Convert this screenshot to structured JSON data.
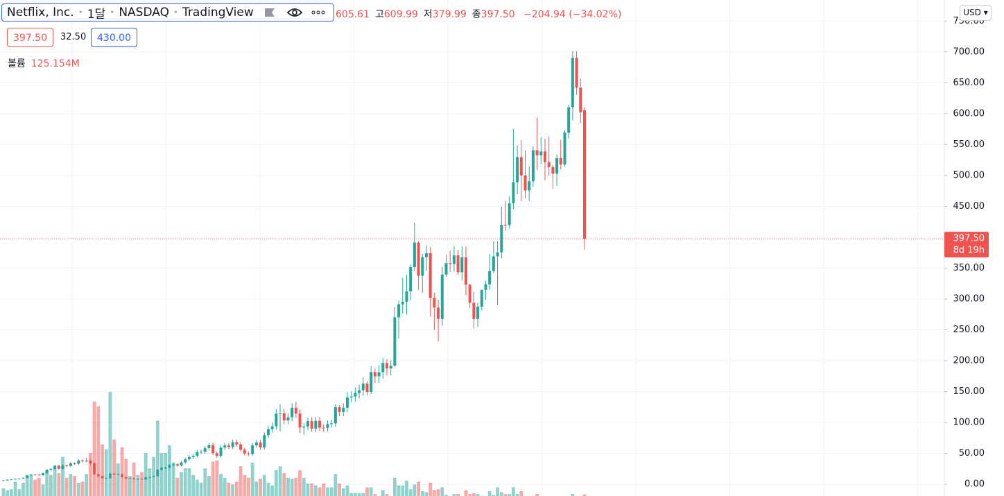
{
  "header": {
    "symbol": "Netflix, Inc.",
    "interval": "1달",
    "exchange": "NASDAQ",
    "source": "TradingView",
    "open": "605.61",
    "high_label": "고",
    "high": "609.99",
    "low_label": "저",
    "low": "379.99",
    "close_label": "종",
    "close": "397.50",
    "change": "−204.94 (−34.02%)",
    "sell": "397.50",
    "spread": "32.50",
    "buy": "430.00",
    "volume_label": "볼륨",
    "volume_value": "125.154M",
    "currency": "USD"
  },
  "chart_data": {
    "type": "candlestick",
    "open": [
      5.9,
      6.3,
      7.4,
      7.9,
      8.9,
      9.3,
      10.5,
      14.1,
      15.7,
      15.5,
      14.6,
      17.9,
      23.2,
      24.8,
      29.9,
      25.1,
      30.4,
      29.6,
      33.9,
      33.3,
      38.6,
      37.5,
      38.3,
      33.8,
      16.2,
      13.2,
      9.8,
      9.9,
      17.3,
      15.7,
      16.4,
      11.5,
      9.2,
      9.8,
      8.1,
      8.7,
      7.8,
      11.3,
      11.7,
      13.2,
      23.6,
      26.6,
      27.0,
      30.9,
      32.3,
      30.2,
      35.4,
      40.7,
      44.2,
      46.2,
      52.1,
      52.6,
      58.5,
      63.4,
      50.3,
      46.0,
      59.4,
      62.9,
      60.3,
      68.2,
      64.4,
      55.9,
      49.8,
      48.8,
      63.1,
      67.8,
      59.5,
      79.5,
      89.2,
      93.8,
      114.3,
      115.0,
      103.3,
      108.4,
      123.8,
      114.4,
      91.8,
      93.4,
      102.2,
      90.0,
      102.6,
      91.5,
      91.3,
      97.5,
      98.6,
      124.9,
      117.0,
      123.8,
      140.7,
      142.1,
      147.8,
      152.2,
      163.1,
      149.4,
      181.7,
      174.7,
      181.4,
      196.4,
      187.6,
      192.0,
      270.3,
      291.4,
      295.4,
      312.5,
      351.6,
      391.4,
      337.5,
      367.7,
      374.1,
      301.8,
      286.1,
      267.7,
      339.5,
      358.1,
      356.6,
      370.5,
      343.3,
      367.3,
      323.0,
      293.8,
      267.6,
      287.4,
      314.7,
      323.6,
      345.1,
      369.0,
      375.5,
      419.9,
      419.7,
      455.0,
      488.9,
      529.6,
      500.0,
      475.7,
      490.7,
      540.7,
      532.4,
      538.9,
      521.7,
      513.5,
      502.8,
      528.2,
      517.6,
      569.2,
      610.3,
      690.3,
      641.9,
      605.61
    ],
    "high": [
      6.7,
      7.8,
      8.4,
      9.4,
      9.9,
      11.1,
      14.9,
      16.6,
      16.6,
      16.4,
      19.0,
      24.6,
      26.3,
      31.7,
      31.7,
      32.2,
      32.2,
      35.9,
      35.9,
      40.9,
      40.9,
      43.0,
      40.6,
      35.8,
      17.2,
      14.0,
      10.5,
      18.3,
      18.3,
      17.4,
      17.4,
      12.2,
      10.4,
      10.4,
      9.2,
      9.2,
      12.0,
      12.4,
      14.0,
      25.0,
      28.2,
      28.6,
      32.8,
      34.2,
      34.2,
      37.5,
      43.1,
      46.9,
      49.0,
      55.2,
      55.8,
      62.0,
      67.2,
      67.2,
      53.3,
      63.0,
      66.7,
      66.7,
      72.3,
      72.3,
      68.3,
      59.3,
      52.8,
      66.9,
      71.9,
      71.9,
      84.3,
      94.6,
      99.4,
      121.2,
      129.3,
      121.9,
      114.9,
      131.2,
      133.3,
      121.3,
      99.0,
      108.3,
      108.3,
      108.8,
      108.8,
      97.0,
      103.4,
      104.5,
      129.3,
      128.3,
      131.2,
      149.1,
      150.6,
      156.7,
      161.3,
      172.9,
      166.9,
      191.5,
      187.7,
      192.3,
      204.4,
      202.5,
      200.9,
      286.8,
      297.4,
      333.9,
      338.8,
      356.1,
      423.2,
      393.7,
      373.0,
      386.8,
      384.0,
      310.0,
      298.7,
      352.0,
      371.5,
      378.0,
      385.9,
      379.4,
      385.0,
      385.0,
      324.5,
      311.5,
      293.4,
      315.2,
      329.9,
      373.0,
      393.5,
      393.5,
      449.5,
      459.0,
      466.8,
      575.4,
      548.5,
      557.4,
      540.3,
      514.9,
      547.5,
      593.3,
      562.2,
      559.7,
      563.6,
      517.0,
      533.9,
      557.8,
      572.7,
      614.6,
      701.0,
      701.0,
      656.9,
      609.99
    ],
    "low": [
      5.5,
      5.9,
      7.0,
      7.4,
      8.4,
      8.7,
      9.9,
      13.3,
      14.6,
      13.7,
      13.7,
      16.8,
      21.8,
      23.3,
      23.6,
      23.6,
      27.8,
      27.8,
      31.3,
      31.3,
      35.3,
      35.3,
      31.8,
      15.2,
      10.9,
      9.2,
      9.2,
      9.3,
      14.8,
      14.8,
      10.8,
      8.6,
      8.6,
      7.6,
      7.6,
      7.3,
      7.3,
      10.6,
      11.0,
      12.4,
      22.2,
      25.0,
      25.4,
      29.0,
      28.4,
      28.4,
      33.3,
      38.3,
      41.5,
      43.4,
      49.0,
      49.4,
      55.0,
      47.3,
      43.2,
      43.2,
      55.8,
      56.7,
      56.7,
      60.5,
      52.5,
      46.8,
      45.9,
      45.9,
      59.3,
      55.9,
      55.9,
      74.7,
      83.8,
      88.2,
      85.5,
      97.1,
      97.1,
      101.9,
      107.5,
      82.8,
      79.9,
      87.8,
      84.6,
      84.6,
      86.0,
      84.5,
      85.8,
      91.7,
      92.7,
      110.0,
      110.0,
      116.4,
      132.3,
      133.6,
      138.9,
      143.1,
      144.3,
      146.1,
      164.2,
      164.2,
      170.5,
      176.3,
      176.3,
      190.0,
      236.1,
      275.9,
      275.0,
      298.1,
      344.7,
      315.1,
      310.0,
      345.6,
      271.2,
      250.1,
      231.2,
      256.6,
      336.2,
      343.8,
      344.3,
      339.0,
      329.9,
      305.5,
      285.0,
      252.3,
      254.5,
      281.8,
      298.6,
      315.2,
      341.8,
      290.3,
      365.4,
      410.2,
      413.8,
      445.1,
      469.4,
      458.6,
      463.4,
      458.6,
      481.3,
      508.8,
      518.0,
      492.2,
      499.8,
      478.5,
      483.0,
      509.5,
      514.1,
      560.0,
      589.0,
      630.5,
      584.3,
      379.99
    ],
    "close": [
      6.3,
      7.4,
      7.9,
      8.9,
      9.3,
      10.5,
      14.1,
      15.7,
      15.5,
      14.6,
      17.9,
      23.2,
      24.8,
      29.9,
      25.1,
      30.4,
      29.6,
      33.9,
      33.3,
      38.6,
      37.5,
      38.3,
      33.8,
      16.2,
      13.2,
      9.8,
      9.9,
      17.3,
      15.7,
      16.4,
      11.5,
      9.2,
      9.8,
      8.1,
      8.7,
      7.8,
      11.3,
      11.7,
      13.2,
      23.6,
      26.6,
      27.0,
      30.9,
      32.3,
      30.2,
      35.4,
      40.7,
      44.2,
      46.2,
      52.1,
      52.6,
      58.5,
      63.4,
      50.3,
      46.0,
      59.4,
      62.9,
      60.3,
      68.2,
      64.4,
      55.9,
      49.8,
      48.8,
      63.1,
      67.8,
      59.5,
      79.5,
      89.2,
      93.8,
      114.3,
      115.0,
      103.3,
      108.4,
      123.8,
      114.4,
      91.8,
      93.4,
      102.2,
      90.0,
      102.6,
      91.5,
      91.3,
      97.5,
      98.6,
      124.9,
      117.0,
      123.8,
      140.7,
      142.1,
      147.8,
      152.2,
      163.1,
      149.4,
      181.7,
      174.7,
      181.4,
      196.4,
      187.6,
      192.0,
      270.3,
      291.4,
      295.4,
      312.5,
      351.6,
      391.4,
      337.5,
      367.7,
      374.1,
      301.8,
      286.1,
      267.7,
      339.5,
      358.1,
      356.6,
      370.5,
      343.3,
      367.3,
      323.0,
      293.8,
      267.6,
      287.4,
      314.7,
      323.6,
      345.1,
      369.0,
      375.5,
      419.9,
      419.7,
      455.0,
      488.9,
      529.6,
      500.0,
      475.7,
      490.7,
      540.7,
      532.4,
      538.9,
      521.7,
      513.5,
      502.8,
      528.2,
      517.6,
      569.2,
      610.3,
      690.3,
      641.9,
      602.4,
      397.5
    ],
    "volume": [
      190,
      170,
      180,
      260,
      180,
      250,
      330,
      320,
      280,
      300,
      230,
      380,
      330,
      400,
      350,
      520,
      300,
      340,
      320,
      250,
      260,
      340,
      560,
      1100,
      1050,
      650,
      600,
      1200,
      700,
      450,
      620,
      500,
      320,
      460,
      330,
      360,
      560,
      400,
      520,
      900,
      560,
      560,
      640,
      460,
      300,
      360,
      400,
      400,
      330,
      280,
      250,
      400,
      320,
      470,
      480,
      340,
      300,
      250,
      230,
      260,
      420,
      330,
      300,
      460,
      260,
      290,
      330,
      250,
      220,
      380,
      420,
      350,
      300,
      290,
      300,
      380,
      300,
      240,
      240,
      220,
      200,
      240,
      200,
      200,
      340,
      240,
      190,
      220,
      140,
      140,
      140,
      140,
      200,
      200,
      130,
      110,
      170,
      130,
      110,
      300,
      220,
      220,
      270,
      180,
      230,
      260,
      160,
      150,
      250,
      170,
      180,
      200,
      120,
      100,
      130,
      130,
      110,
      170,
      130,
      140,
      130,
      110,
      110,
      160,
      120,
      200,
      150,
      130,
      130,
      200,
      130,
      160,
      100,
      90,
      100,
      130,
      60,
      80,
      90,
      80,
      70,
      70,
      60,
      80,
      130,
      80,
      90,
      125.154
    ],
    "up_color": "#26a69a",
    "down_color": "#ef5350",
    "ylim": [
      -19,
      784
    ],
    "yticks": [
      {
        "value": 0,
        "label": "0.00"
      },
      {
        "value": 50,
        "label": "50.00"
      },
      {
        "value": 100,
        "label": "100.00"
      },
      {
        "value": 150,
        "label": "150.00"
      },
      {
        "value": 200,
        "label": "200.00"
      },
      {
        "value": 250,
        "label": "250.00"
      },
      {
        "value": 300,
        "label": "300.00"
      },
      {
        "value": 350,
        "label": "350.00"
      },
      {
        "value": 400,
        "label": "400.00"
      },
      {
        "value": 450,
        "label": "450.00"
      },
      {
        "value": 500,
        "label": "500.00"
      },
      {
        "value": 550,
        "label": "550.00"
      },
      {
        "value": 600,
        "label": "600.00"
      },
      {
        "value": 650,
        "label": "650.00"
      },
      {
        "value": 700,
        "label": "700.00"
      },
      {
        "value": 750,
        "label": "750.00"
      }
    ],
    "grid": true,
    "last_price": {
      "value": 397.5,
      "label": "397.50"
    },
    "countdown": "8d 19h"
  }
}
